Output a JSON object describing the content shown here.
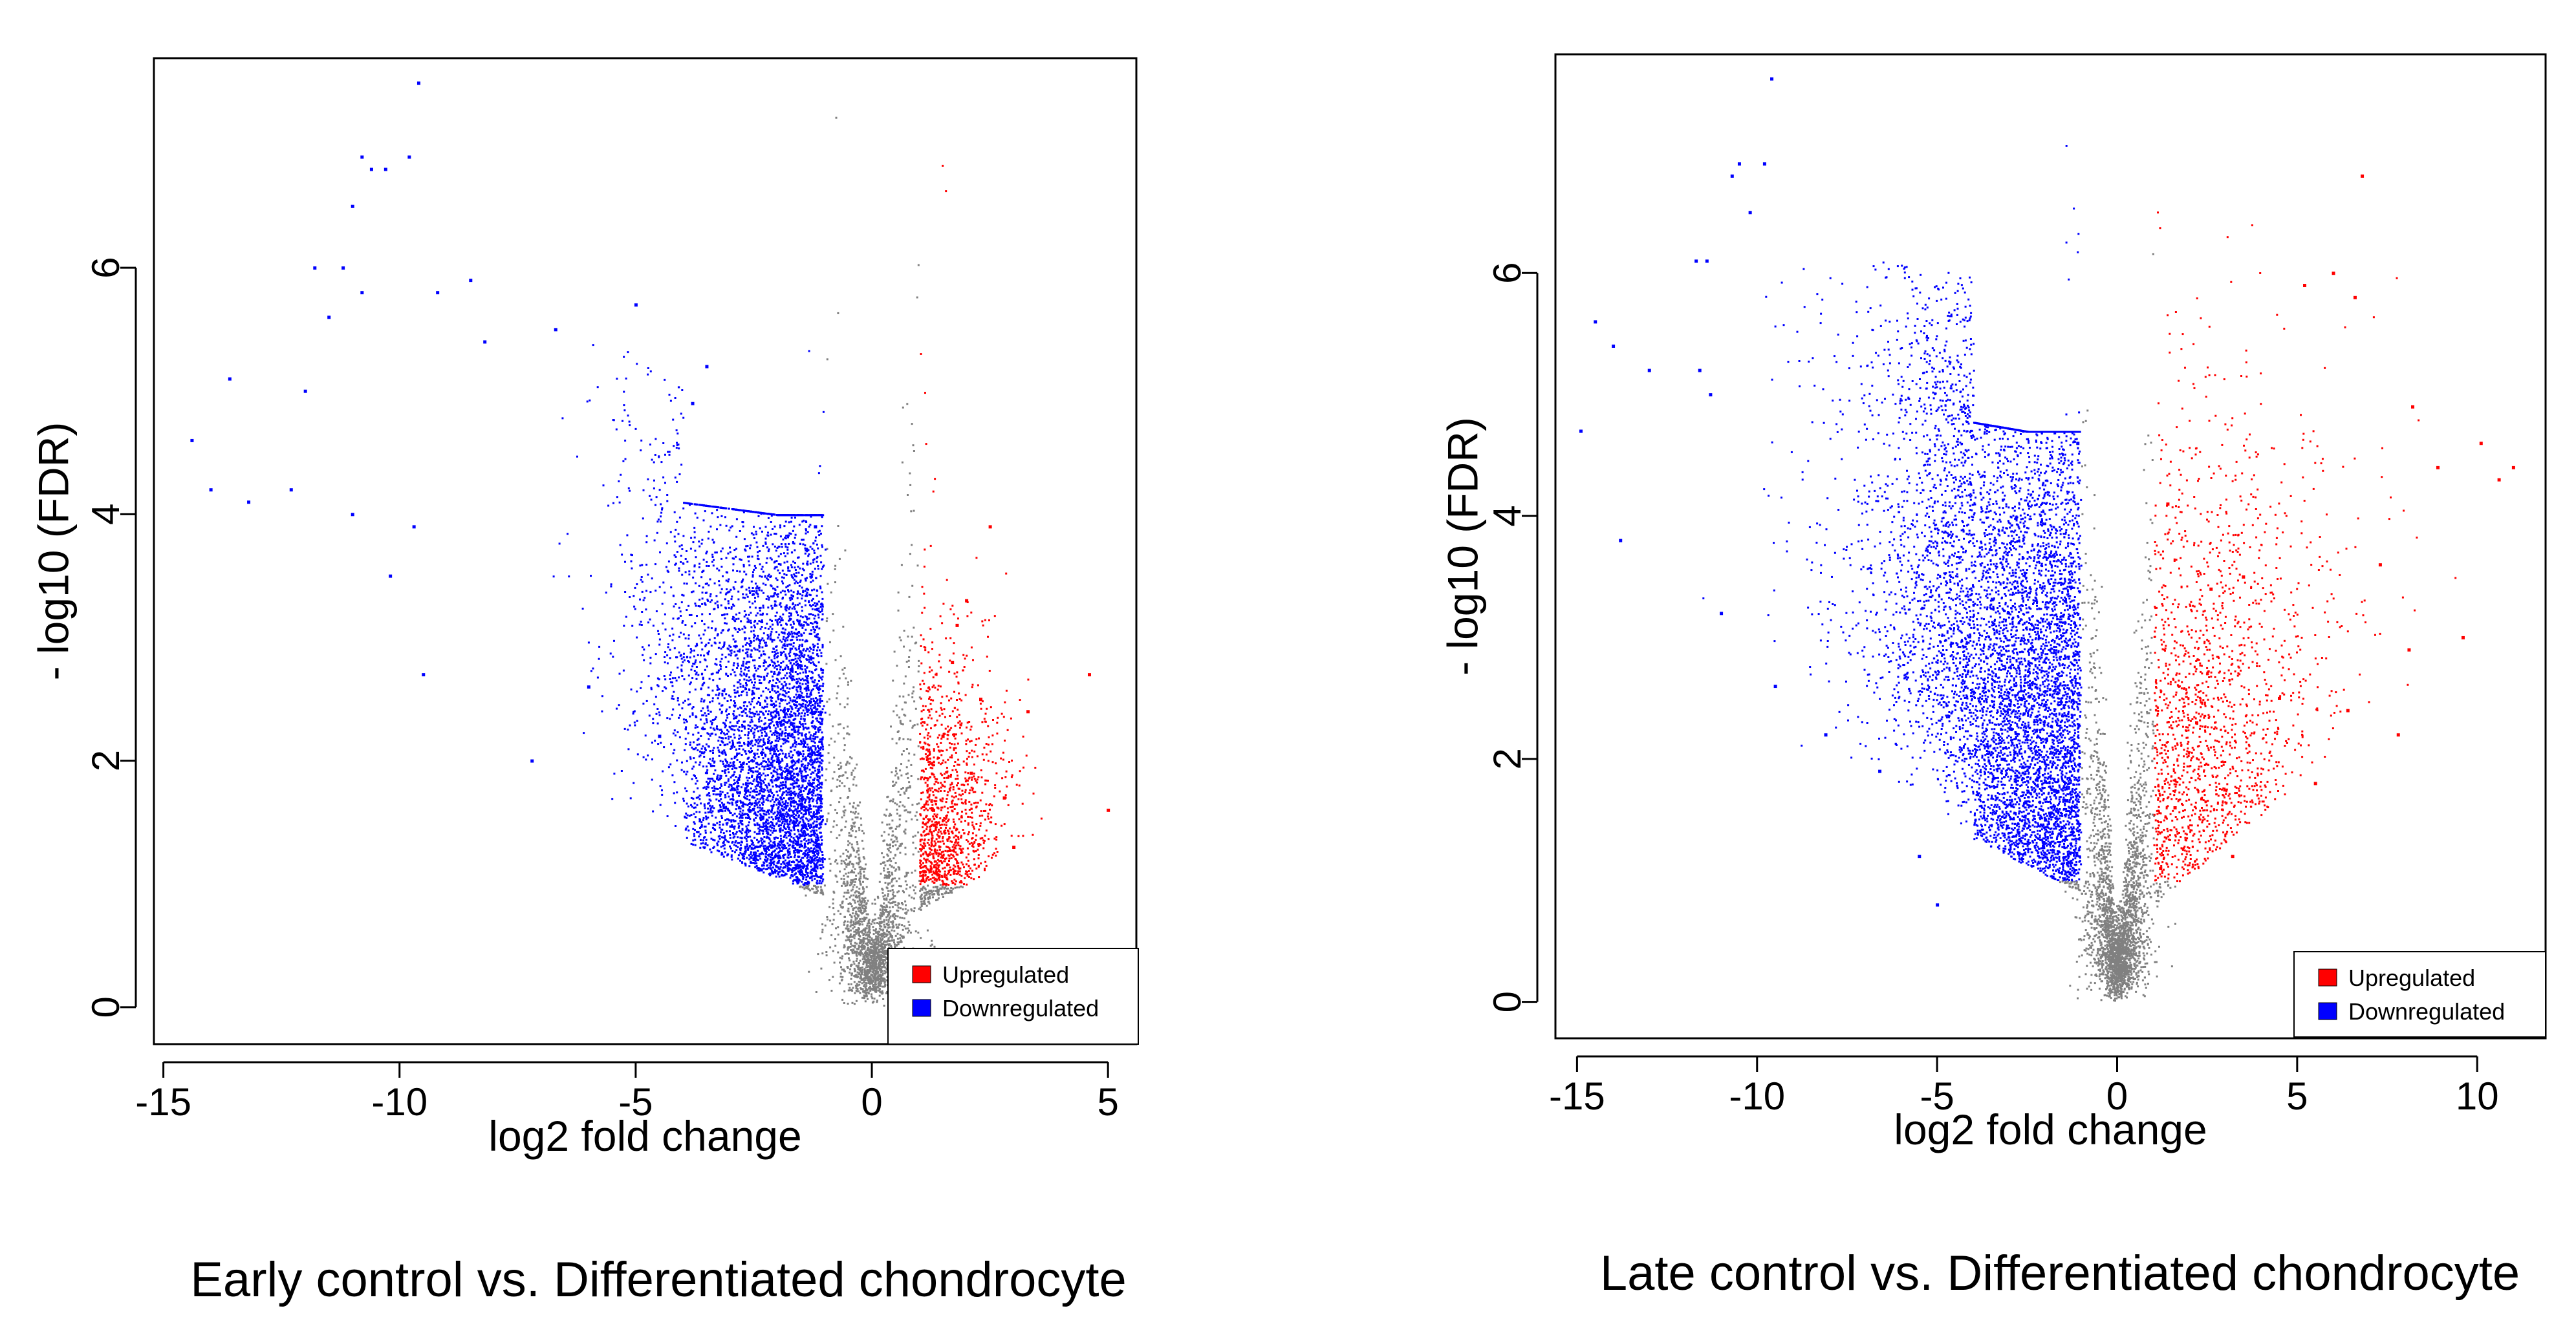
{
  "chart_data": [
    {
      "type": "scatter",
      "subtype": "volcano",
      "caption": "Early control vs. Differentiated chondrocyte",
      "xlabel": "log2 fold change",
      "ylabel": "- log10 (FDR)",
      "xlim": [
        -15.2,
        5.6
      ],
      "ylim": [
        -0.3,
        7.7
      ],
      "xticks": [
        -15,
        -10,
        -5,
        0,
        5
      ],
      "xtick_labels": [
        "-15",
        "-10",
        "-5",
        "0",
        "5"
      ],
      "yticks": [
        0,
        2,
        4,
        6
      ],
      "ytick_labels": [
        "0",
        "2",
        "4",
        "6"
      ],
      "legend": [
        {
          "label": "Upregulated",
          "color": "#ff0000"
        },
        {
          "label": "Downregulated",
          "color": "#0000ff"
        }
      ],
      "legend_position": "bottom-right",
      "colors": {
        "up": "#ff0000",
        "down": "#0000ff",
        "ns": "#808080"
      },
      "thresholds": {
        "log2fc": 1,
        "neg_log10_fdr": 1
      },
      "series": [
        {
          "name": "Downregulated",
          "color": "#0000ff",
          "points": [
            [
              -9.6,
              7.5
            ],
            [
              -10.8,
              6.9
            ],
            [
              -9.8,
              6.9
            ],
            [
              -10.3,
              6.8
            ],
            [
              -10.6,
              6.8
            ],
            [
              -11.0,
              6.5
            ],
            [
              -11.8,
              6.0
            ],
            [
              -11.2,
              6.0
            ],
            [
              -10.8,
              5.8
            ],
            [
              -8.5,
              5.9
            ],
            [
              -9.2,
              5.8
            ],
            [
              -12.0,
              5.0
            ],
            [
              -14.4,
              4.6
            ],
            [
              -13.6,
              5.1
            ],
            [
              -11.5,
              5.6
            ],
            [
              -8.2,
              5.4
            ],
            [
              -6.7,
              5.5
            ],
            [
              -5.0,
              5.7
            ],
            [
              -3.5,
              5.2
            ],
            [
              -3.8,
              4.9
            ],
            [
              -12.3,
              4.2
            ],
            [
              -13.2,
              4.1
            ],
            [
              -14.0,
              4.2
            ],
            [
              -11.0,
              4.0
            ],
            [
              -9.7,
              3.9
            ],
            [
              -10.2,
              3.5
            ],
            [
              -9.5,
              2.7
            ],
            [
              -7.2,
              2.0
            ],
            [
              -6.0,
              2.6
            ],
            [
              -4.5,
              2.2
            ],
            [
              -3.2,
              1.6
            ],
            [
              -2.5,
              1.2
            ],
            [
              -1.5,
              1.1
            ],
            [
              -1.2,
              3.9
            ]
          ]
        },
        {
          "name": "Upregulated",
          "color": "#ff0000",
          "points": [
            [
              1.1,
              1.1
            ],
            [
              1.3,
              1.6
            ],
            [
              1.5,
              2.2
            ],
            [
              1.8,
              3.1
            ],
            [
              2.0,
              3.3
            ],
            [
              2.5,
              3.9
            ],
            [
              2.3,
              2.5
            ],
            [
              1.7,
              2.8
            ],
            [
              2.8,
              1.7
            ],
            [
              3.3,
              2.4
            ],
            [
              4.6,
              2.7
            ],
            [
              5.0,
              1.6
            ],
            [
              3.0,
              1.3
            ],
            [
              2.1,
              1.9
            ]
          ]
        }
      ]
    },
    {
      "type": "scatter",
      "subtype": "volcano",
      "caption": "Late control vs. Differentiated chondrocyte",
      "xlabel": "log2 fold change",
      "ylabel": "- log10 (FDR)",
      "xlim": [
        -15.6,
        11.9
      ],
      "ylim": [
        -0.3,
        7.8
      ],
      "xticks": [
        -15,
        -10,
        -5,
        0,
        5,
        10
      ],
      "xtick_labels": [
        "-15",
        "-10",
        "-5",
        "0",
        "5",
        "10"
      ],
      "yticks": [
        0,
        2,
        4,
        6
      ],
      "ytick_labels": [
        "0",
        "2",
        "4",
        "6"
      ],
      "legend": [
        {
          "label": "Upregulated",
          "color": "#ff0000"
        },
        {
          "label": "Downregulated",
          "color": "#0000ff"
        }
      ],
      "legend_position": "bottom-right",
      "colors": {
        "up": "#ff0000",
        "down": "#0000ff",
        "ns": "#808080"
      },
      "thresholds": {
        "log2fc": 1,
        "neg_log10_fdr": 1
      },
      "series": [
        {
          "name": "Downregulated",
          "color": "#0000ff",
          "points": [
            [
              -9.6,
              7.6
            ],
            [
              -10.5,
              6.9
            ],
            [
              -9.8,
              6.9
            ],
            [
              -10.7,
              6.8
            ],
            [
              -10.2,
              6.5
            ],
            [
              -11.7,
              6.1
            ],
            [
              -11.4,
              6.1
            ],
            [
              -14.5,
              5.6
            ],
            [
              -14.0,
              5.4
            ],
            [
              -13.0,
              5.2
            ],
            [
              -11.6,
              5.2
            ],
            [
              -11.3,
              5.0
            ],
            [
              -14.9,
              4.7
            ],
            [
              -13.8,
              3.8
            ],
            [
              -11.0,
              3.2
            ],
            [
              -9.5,
              2.6
            ],
            [
              -8.1,
              2.2
            ],
            [
              -6.6,
              1.9
            ],
            [
              -5.5,
              1.2
            ],
            [
              -5.0,
              0.8
            ],
            [
              -3.2,
              2.0
            ],
            [
              -2.0,
              1.5
            ],
            [
              -1.1,
              4.6
            ]
          ]
        },
        {
          "name": "Upregulated",
          "color": "#ff0000",
          "points": [
            [
              6.8,
              6.8
            ],
            [
              6.0,
              6.0
            ],
            [
              5.2,
              5.9
            ],
            [
              6.6,
              5.8
            ],
            [
              8.2,
              4.9
            ],
            [
              10.1,
              4.6
            ],
            [
              11.0,
              4.4
            ],
            [
              10.6,
              4.3
            ],
            [
              8.9,
              4.4
            ],
            [
              7.3,
              3.6
            ],
            [
              9.6,
              3.0
            ],
            [
              8.1,
              2.9
            ],
            [
              6.4,
              2.4
            ],
            [
              3.5,
              3.5
            ],
            [
              1.2,
              1.1
            ],
            [
              1.6,
              1.6
            ],
            [
              2.2,
              2.3
            ],
            [
              2.6,
              3.4
            ],
            [
              1.4,
              4.1
            ],
            [
              4.5,
              2.5
            ],
            [
              5.5,
              1.8
            ],
            [
              3.2,
              1.2
            ],
            [
              7.8,
              2.2
            ]
          ]
        }
      ]
    }
  ]
}
